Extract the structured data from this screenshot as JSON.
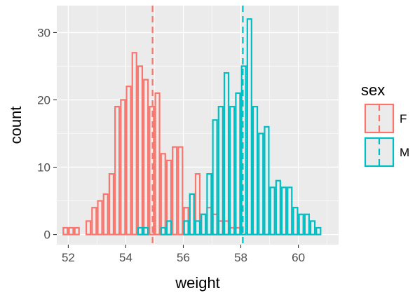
{
  "chart_data": {
    "type": "histogram",
    "title": "",
    "xlabel": "weight",
    "ylabel": "count",
    "xlim": [
      51.6,
      61.4
    ],
    "ylim": [
      -1.5,
      34
    ],
    "xticks": [
      52,
      54,
      56,
      58,
      60
    ],
    "yticks": [
      0,
      10,
      20,
      30
    ],
    "grid": true,
    "bin_width": 0.2,
    "bar_fill": "none",
    "legend": {
      "title": "sex",
      "placement": "right"
    },
    "series": [
      {
        "name": "F",
        "color": "#F8766D",
        "mean": 54.93,
        "x": [
          51.9,
          52.1,
          52.3,
          52.5,
          52.7,
          52.9,
          53.1,
          53.3,
          53.5,
          53.7,
          53.9,
          54.1,
          54.3,
          54.5,
          54.7,
          54.9,
          55.1,
          55.3,
          55.5,
          55.7,
          55.9,
          56.1,
          56.3,
          56.5,
          56.7,
          56.9,
          57.1,
          57.3,
          57.5,
          57.7,
          57.9,
          58.1,
          58.3,
          58.5,
          58.7,
          58.9,
          59.1,
          59.3,
          59.5,
          59.7,
          59.9,
          60.1,
          60.3,
          60.5,
          60.7,
          60.9
        ],
        "values": [
          1,
          1,
          1,
          0,
          2,
          4,
          5,
          6,
          9,
          19,
          20,
          22,
          27,
          25,
          23,
          19,
          21,
          12,
          11,
          13,
          13,
          4,
          6,
          9,
          3,
          4,
          3,
          2,
          2,
          1,
          1,
          0,
          0,
          0,
          0,
          0,
          0,
          0,
          0,
          0,
          0,
          0,
          0,
          0,
          0,
          0
        ]
      },
      {
        "name": "M",
        "color": "#00BFC4",
        "mean": 58.07,
        "x": [
          51.9,
          52.1,
          52.3,
          52.5,
          52.7,
          52.9,
          53.1,
          53.3,
          53.5,
          53.7,
          53.9,
          54.1,
          54.3,
          54.5,
          54.7,
          54.9,
          55.1,
          55.3,
          55.5,
          55.7,
          55.9,
          56.1,
          56.3,
          56.5,
          56.7,
          56.9,
          57.1,
          57.3,
          57.5,
          57.7,
          57.9,
          58.1,
          58.3,
          58.5,
          58.7,
          58.9,
          59.1,
          59.3,
          59.5,
          59.7,
          59.9,
          60.1,
          60.3,
          60.5,
          60.7,
          60.9
        ],
        "values": [
          0,
          0,
          0,
          0,
          0,
          0,
          0,
          0,
          0,
          0,
          0,
          0,
          0,
          1,
          1,
          0,
          0,
          1,
          2,
          0,
          0,
          2,
          6,
          2,
          3,
          9,
          17,
          19,
          24,
          19,
          21,
          25,
          32,
          19,
          15,
          16,
          7,
          8,
          7,
          7,
          4,
          3,
          3,
          2,
          1,
          0
        ]
      }
    ]
  }
}
